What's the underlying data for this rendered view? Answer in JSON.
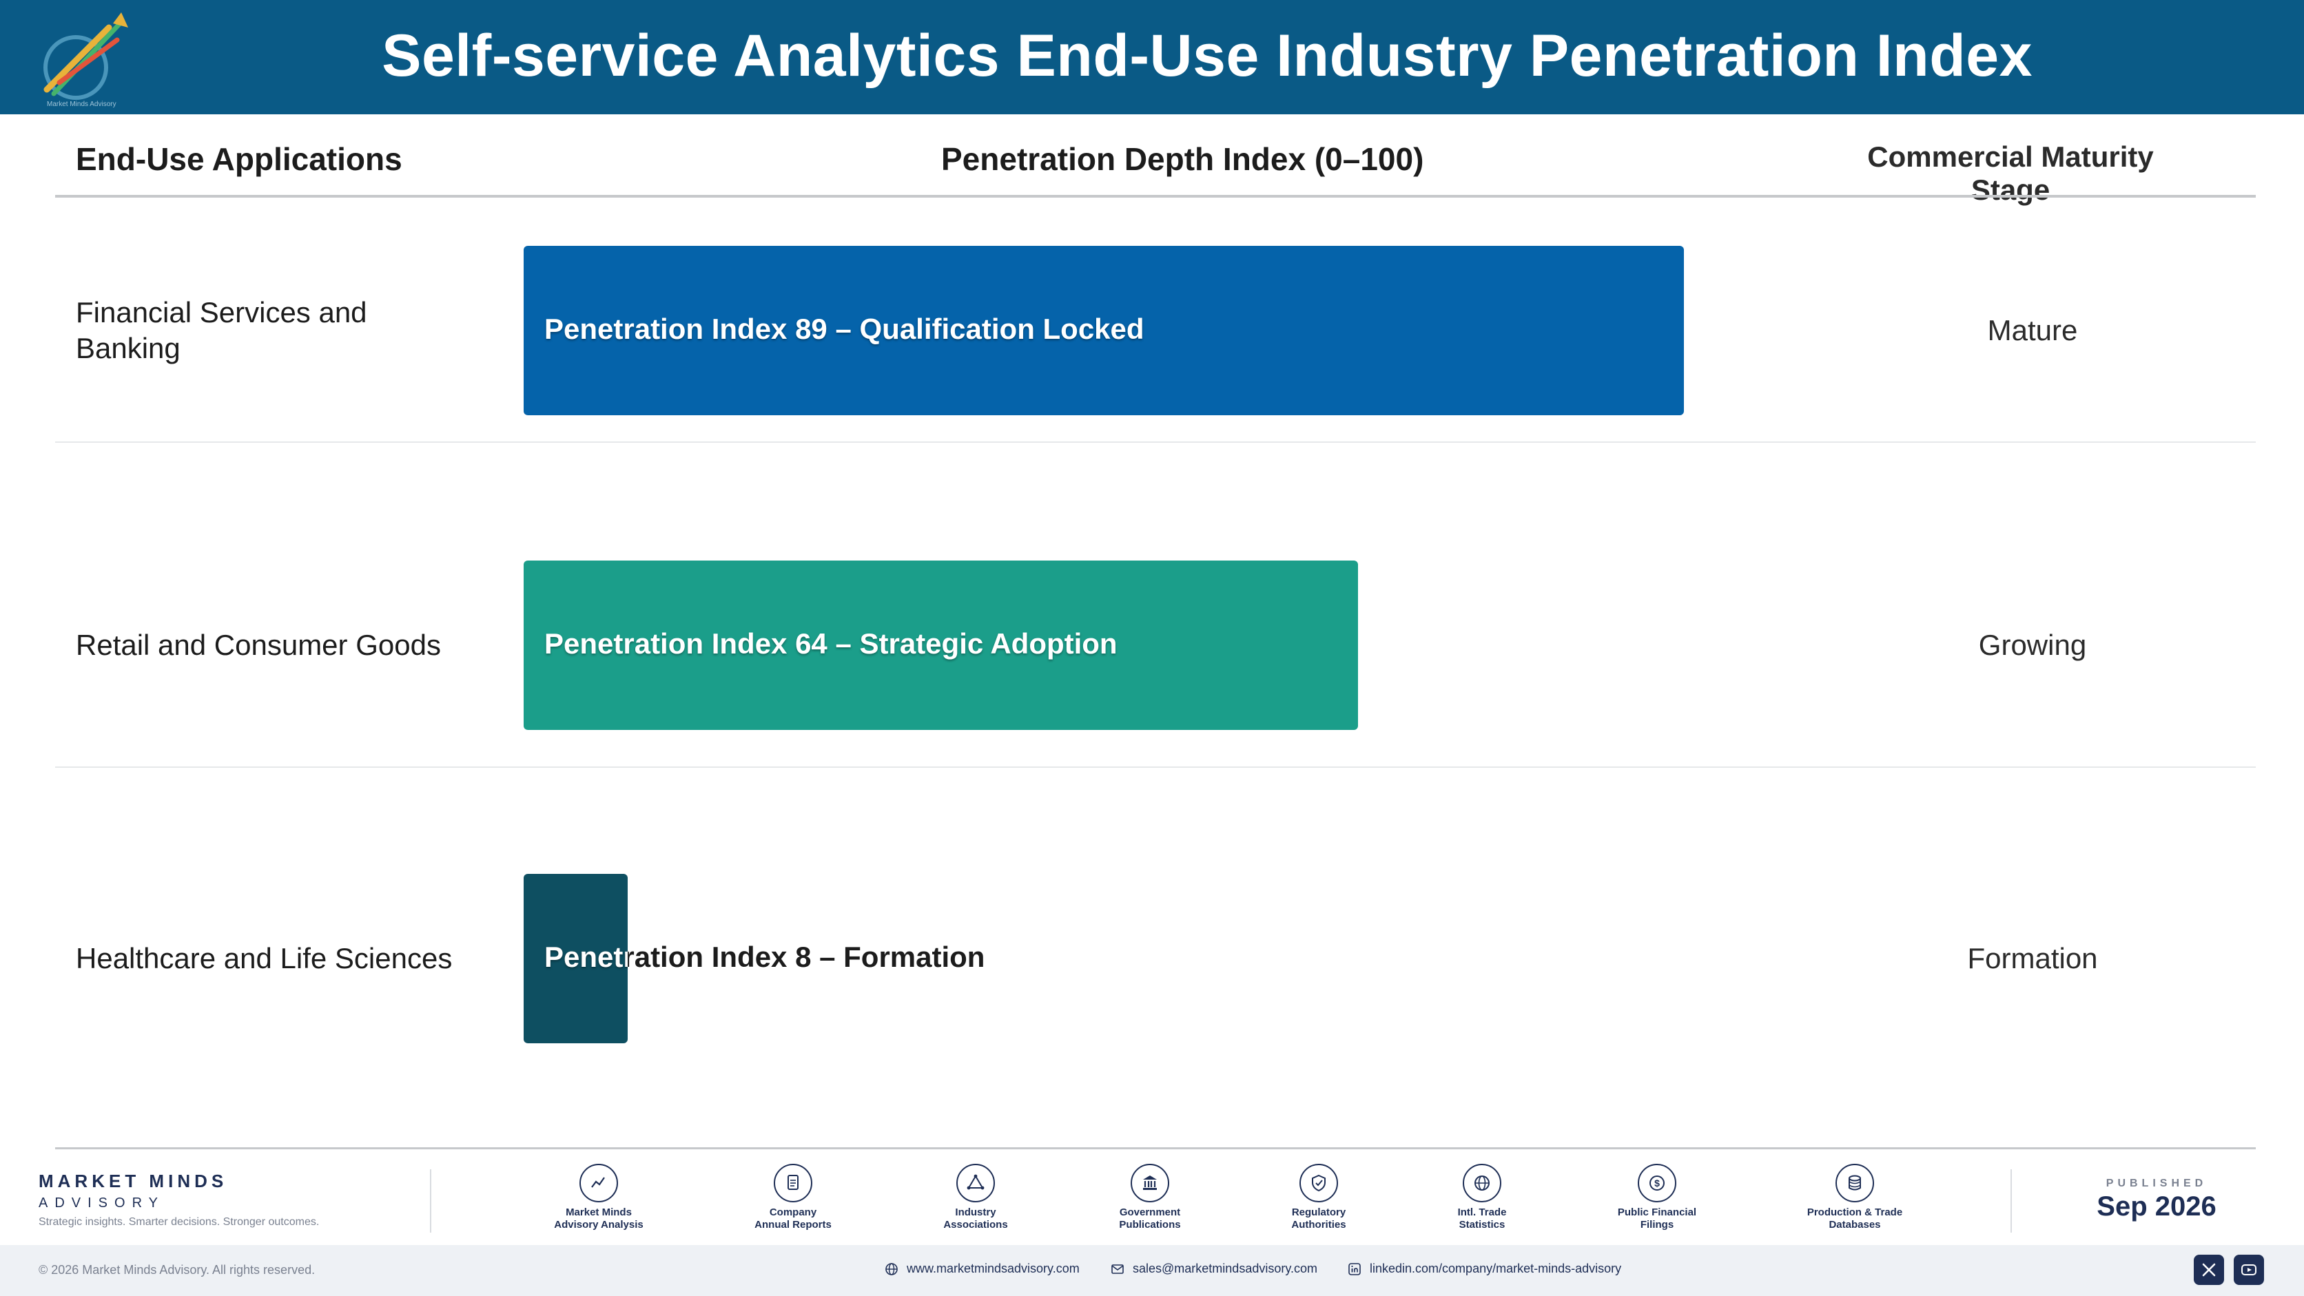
{
  "header": {
    "title": "Self-service Analytics End-Use Industry Penetration Index"
  },
  "columns": {
    "applications": "End-Use Applications",
    "index": "Penetration Depth Index (0–100)",
    "stage": "Commercial Maturity Stage"
  },
  "chart_data": {
    "type": "bar",
    "orientation": "horizontal",
    "xlim": [
      0,
      100
    ],
    "categories": [
      "Financial Services and Banking",
      "Retail and Consumer Goods",
      "Healthcare and Life Sciences"
    ],
    "values": [
      89,
      64,
      8
    ],
    "bar_labels": [
      "Penetration Index 89 – Qualification Locked",
      "Penetration Index 64 – Strategic Adoption",
      "Penetration Index 8 – Formation"
    ],
    "stages": [
      "Mature",
      "Growing",
      "Formation"
    ],
    "colors": [
      "#0563aa",
      "#1b9e8a",
      "#0e4f61"
    ]
  },
  "footer": {
    "brand_name": "MARKET MINDS",
    "brand_sub": "ADVISORY",
    "brand_tagline": "Strategic insights. Smarter decisions. Stronger outcomes.",
    "sources": [
      {
        "line1": "Market Minds",
        "line2": "Advisory Analysis",
        "icon": "chart-line-icon"
      },
      {
        "line1": "Company",
        "line2": "Annual Reports",
        "icon": "document-icon"
      },
      {
        "line1": "Industry",
        "line2": "Associations",
        "icon": "network-icon"
      },
      {
        "line1": "Government",
        "line2": "Publications",
        "icon": "government-building-icon"
      },
      {
        "line1": "Regulatory",
        "line2": "Authorities",
        "icon": "shield-icon"
      },
      {
        "line1": "Intl. Trade",
        "line2": "Statistics",
        "icon": "globe-icon"
      },
      {
        "line1": "Public Financial",
        "line2": "Filings",
        "icon": "dollar-coin-icon"
      },
      {
        "line1": "Production & Trade",
        "line2": "Databases",
        "icon": "database-icon"
      }
    ],
    "published_label": "PUBLISHED",
    "published_date": "Sep 2026",
    "copyright": "© 2026 Market Minds Advisory. All rights reserved.",
    "website": "www.marketmindsadvisory.com",
    "email": "sales@marketmindsadvisory.com",
    "linkedin": "linkedin.com/company/market-minds-advisory",
    "social": [
      "x-icon",
      "youtube-icon"
    ]
  }
}
